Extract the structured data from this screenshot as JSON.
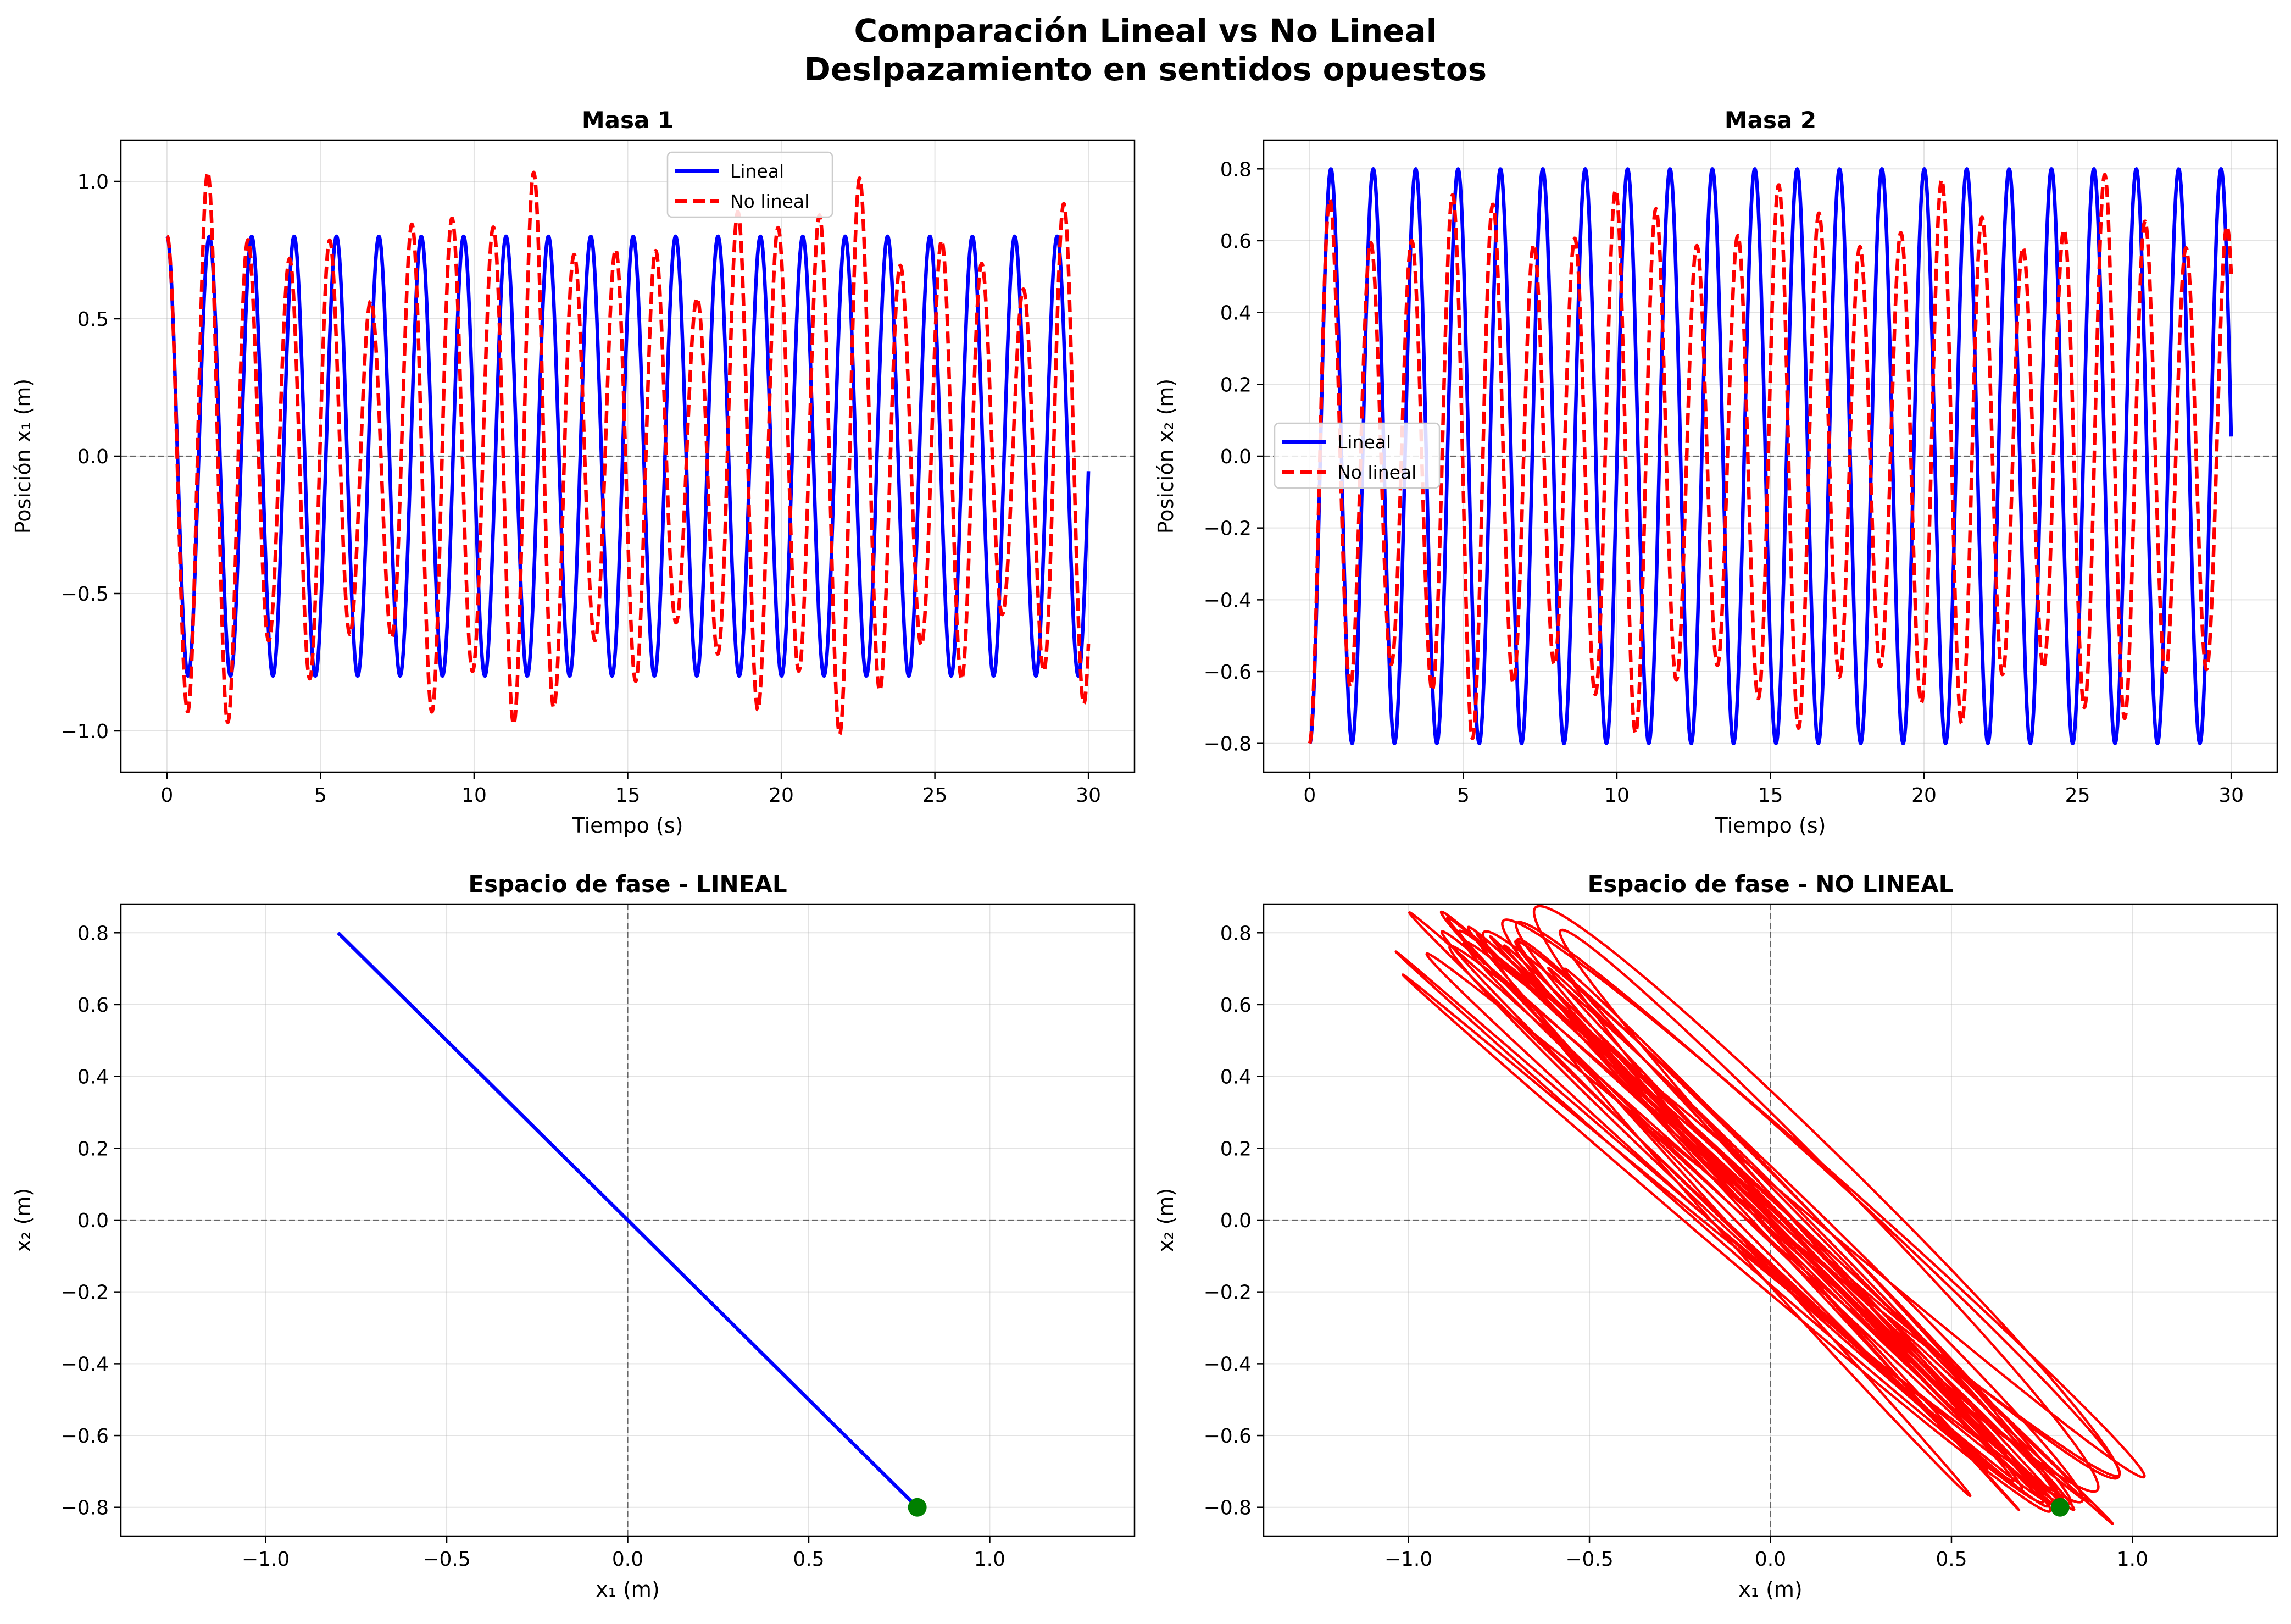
{
  "figure": {
    "title_line1": "Comparación Lineal vs No Lineal",
    "title_line2": "Deslpazamiento en sentidos opuestos"
  },
  "colors": {
    "linear": "#0000ff",
    "nonlinear": "#ff0000",
    "start_marker": "#008000"
  },
  "chart_data": [
    {
      "id": "masa1",
      "type": "line",
      "title": "Masa 1",
      "xlabel": "Tiempo (s)",
      "ylabel": "Posición x₁ (m)",
      "xlim": [
        -1.5,
        31.5
      ],
      "ylim": [
        -1.15,
        1.15
      ],
      "xticks": [
        0,
        5,
        10,
        15,
        20,
        25,
        30
      ],
      "xtick_labels": [
        "0",
        "5",
        "10",
        "15",
        "20",
        "25",
        "30"
      ],
      "yticks": [
        -1.0,
        -0.5,
        0.0,
        0.5,
        1.0
      ],
      "ytick_labels": [
        "−1.0",
        "−0.5",
        "0.0",
        "0.5",
        "1.0"
      ],
      "grid": true,
      "zero_line": "y",
      "legend": {
        "placement": "upper-center",
        "entries": [
          "Lineal",
          "No lineal"
        ]
      },
      "series": [
        {
          "name": "Lineal",
          "style": "solid",
          "color": "#0000ff",
          "model": {
            "kind": "cos",
            "amplitude": 0.8,
            "period": 1.38,
            "t_start": 0,
            "t_end": 30,
            "samples": 1800
          }
        },
        {
          "name": "No lineal",
          "style": "dashed",
          "color": "#ff0000",
          "model": {
            "kind": "beat",
            "amplitude": 0.8,
            "period": 1.38,
            "extra_amplitude": 0.25,
            "beat_period": 5.2,
            "t_start": 0,
            "t_end": 30,
            "samples": 1800
          }
        }
      ]
    },
    {
      "id": "masa2",
      "type": "line",
      "title": "Masa 2",
      "xlabel": "Tiempo (s)",
      "ylabel": "Posición x₂ (m)",
      "xlim": [
        -1.5,
        31.5
      ],
      "ylim": [
        -0.88,
        0.88
      ],
      "xticks": [
        0,
        5,
        10,
        15,
        20,
        25,
        30
      ],
      "xtick_labels": [
        "0",
        "5",
        "10",
        "15",
        "20",
        "25",
        "30"
      ],
      "yticks": [
        -0.8,
        -0.6,
        -0.4,
        -0.2,
        0.0,
        0.2,
        0.4,
        0.6,
        0.8
      ],
      "ytick_labels": [
        "−0.8",
        "−0.6",
        "−0.4",
        "−0.2",
        "0.0",
        "0.2",
        "0.4",
        "0.6",
        "0.8"
      ],
      "grid": true,
      "zero_line": "y",
      "legend": {
        "placement": "center-left",
        "entries": [
          "Lineal",
          "No lineal"
        ]
      },
      "series": [
        {
          "name": "Lineal",
          "style": "solid",
          "color": "#0000ff",
          "model": {
            "kind": "cos",
            "amplitude": -0.8,
            "period": 1.38,
            "t_start": 0,
            "t_end": 30,
            "samples": 1800
          }
        },
        {
          "name": "No lineal",
          "style": "dashed",
          "color": "#ff0000",
          "model": {
            "kind": "beat2",
            "amplitude": -0.8,
            "period": 1.38,
            "extra_amplitude": 0.22,
            "beat_period": 5.2,
            "t_start": 0,
            "t_end": 30,
            "samples": 1800
          }
        }
      ]
    },
    {
      "id": "fase-lineal",
      "type": "line",
      "title": "Espacio de fase - LINEAL",
      "xlabel": "x₁ (m)",
      "ylabel": "x₂ (m)",
      "xlim": [
        -1.4,
        1.4
      ],
      "ylim": [
        -0.88,
        0.88
      ],
      "xticks": [
        -1.0,
        -0.5,
        0.0,
        0.5,
        1.0
      ],
      "xtick_labels": [
        "−1.0",
        "−0.5",
        "0.0",
        "0.5",
        "1.0"
      ],
      "yticks": [
        -0.8,
        -0.6,
        -0.4,
        -0.2,
        0.0,
        0.2,
        0.4,
        0.6,
        0.8
      ],
      "ytick_labels": [
        "−0.8",
        "−0.6",
        "−0.4",
        "−0.2",
        "0.0",
        "0.2",
        "0.4",
        "0.6",
        "0.8"
      ],
      "grid": true,
      "zero_line": "xy",
      "series": [
        {
          "style": "solid",
          "color": "#0000ff",
          "x": [
            -0.8,
            0.8
          ],
          "y": [
            0.8,
            -0.8
          ]
        }
      ],
      "start_point": {
        "x": 0.8,
        "y": -0.8
      }
    },
    {
      "id": "fase-no-lineal",
      "type": "line",
      "title": "Espacio de fase - NO LINEAL",
      "xlabel": "x₁ (m)",
      "ylabel": "x₂ (m)",
      "xlim": [
        -1.4,
        1.4
      ],
      "ylim": [
        -0.88,
        0.88
      ],
      "xticks": [
        -1.0,
        -0.5,
        0.0,
        0.5,
        1.0
      ],
      "xtick_labels": [
        "−1.0",
        "−0.5",
        "0.0",
        "0.5",
        "1.0"
      ],
      "yticks": [
        -0.8,
        -0.6,
        -0.4,
        -0.2,
        0.0,
        0.2,
        0.4,
        0.6,
        0.8
      ],
      "ytick_labels": [
        "−0.8",
        "−0.6",
        "−0.4",
        "−0.2",
        "0.0",
        "0.2",
        "0.4",
        "0.6",
        "0.8"
      ],
      "grid": true,
      "zero_line": "xy",
      "series": [
        {
          "style": "solid",
          "color": "#ff0000",
          "model": {
            "kind": "phase",
            "amplitude": 0.8,
            "period": 1.38,
            "extra_amplitude": 0.25,
            "beat_period": 5.2,
            "t_start": 0,
            "t_end": 30,
            "samples": 3000
          }
        }
      ],
      "start_point": {
        "x": 0.8,
        "y": -0.8
      }
    }
  ]
}
